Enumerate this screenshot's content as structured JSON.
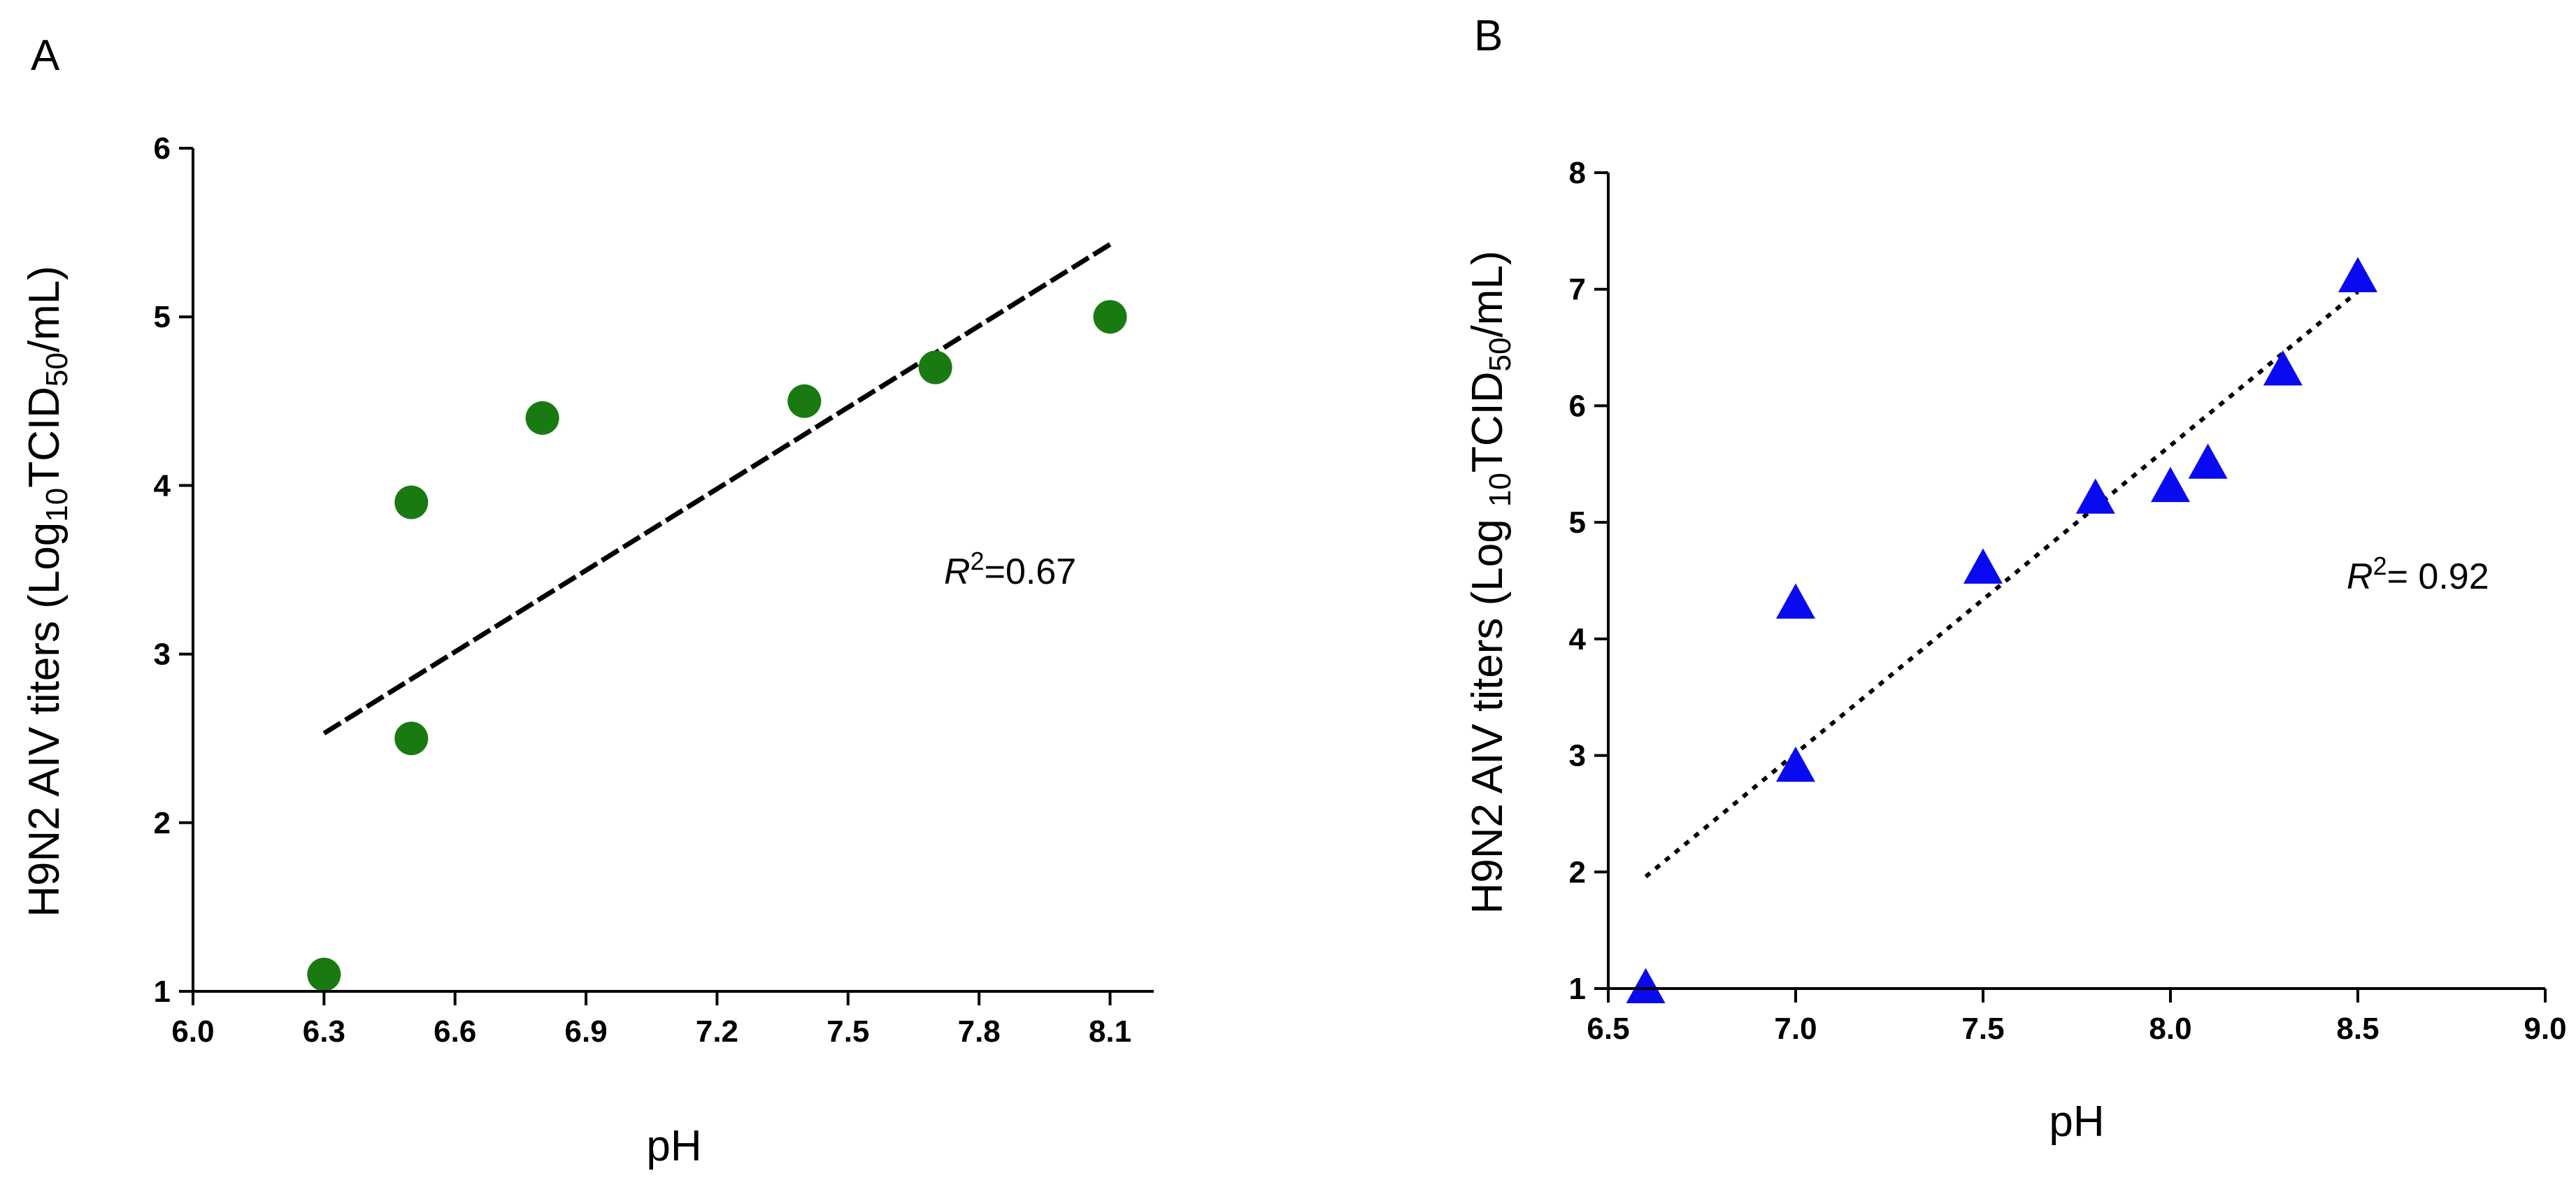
{
  "chart_data": [
    {
      "panel": "A",
      "type": "scatter",
      "xlabel": "pH",
      "ylabel_parts": [
        "H9N2 AIV titers (Log",
        "10",
        "TCID",
        "50",
        "/mL)"
      ],
      "xlim": [
        6.0,
        8.2
      ],
      "ylim": [
        1,
        6
      ],
      "xticks": [
        6.0,
        6.3,
        6.6,
        6.9,
        7.2,
        7.5,
        7.8,
        8.1
      ],
      "xticklabels": [
        "6.0",
        "6.3",
        "6.6",
        "6.9",
        "7.2",
        "7.5",
        "7.8",
        "8.1"
      ],
      "yticks": [
        1,
        2,
        3,
        4,
        5,
        6
      ],
      "yticklabels": [
        "1",
        "2",
        "3",
        "4",
        "5",
        "6"
      ],
      "marker": "circle",
      "color": "#1a7a12",
      "points": [
        [
          6.3,
          1.1
        ],
        [
          6.5,
          3.9
        ],
        [
          6.5,
          2.5
        ],
        [
          6.8,
          4.4
        ],
        [
          7.4,
          4.5
        ],
        [
          7.7,
          4.7
        ],
        [
          8.1,
          5.0
        ]
      ],
      "fit_line": {
        "x": [
          6.3,
          8.1
        ],
        "y": [
          2.53,
          5.43
        ],
        "style": "dashed"
      },
      "r2_label": "R",
      "r2_sup": "2",
      "r2_value": "=0.67"
    },
    {
      "panel": "B",
      "type": "scatter",
      "xlabel": "pH",
      "ylabel_parts": [
        "H9N2 AIV titers (Log ",
        "10",
        "TCID",
        "50",
        "/mL)"
      ],
      "xlim": [
        6.5,
        9.0
      ],
      "ylim": [
        1,
        8
      ],
      "xticks": [
        6.5,
        7.0,
        7.5,
        8.0,
        8.5,
        9.0
      ],
      "xticklabels": [
        "6.5",
        "7.0",
        "7.5",
        "8.0",
        "8.5",
        "9.0"
      ],
      "yticks": [
        1,
        2,
        3,
        4,
        5,
        6,
        7,
        8
      ],
      "yticklabels": [
        "1",
        "2",
        "3",
        "4",
        "5",
        "6",
        "7",
        "8"
      ],
      "marker": "triangle",
      "color": "#0a0af0",
      "points": [
        [
          6.6,
          1.0
        ],
        [
          7.0,
          4.3
        ],
        [
          7.0,
          2.9
        ],
        [
          7.5,
          4.6
        ],
        [
          7.8,
          5.2
        ],
        [
          8.0,
          5.3
        ],
        [
          8.1,
          5.5
        ],
        [
          8.3,
          6.3
        ],
        [
          8.5,
          7.1
        ]
      ],
      "fit_line": {
        "x": [
          6.6,
          8.5
        ],
        "y": [
          1.96,
          6.98
        ],
        "style": "dotted"
      },
      "r2_label": "R",
      "r2_sup": "2",
      "r2_value": "= 0.92"
    }
  ]
}
